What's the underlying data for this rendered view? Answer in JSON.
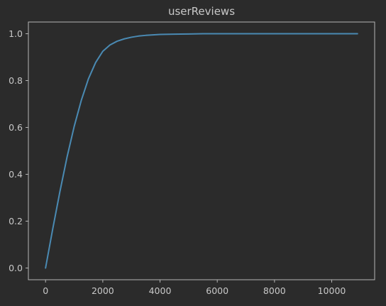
{
  "chart_data": {
    "type": "line",
    "title": "userReviews",
    "xlabel": "",
    "ylabel": "",
    "xlim": [
      -600,
      11500
    ],
    "ylim": [
      -0.05,
      1.05
    ],
    "x_ticks": [
      0,
      2000,
      4000,
      6000,
      8000,
      10000
    ],
    "y_ticks": [
      0.0,
      0.2,
      0.4,
      0.6,
      0.8,
      1.0
    ],
    "x_tick_labels": [
      "0",
      "2000",
      "4000",
      "6000",
      "8000",
      "10000"
    ],
    "y_tick_labels": [
      "0.0",
      "0.2",
      "0.4",
      "0.6",
      "0.8",
      "1.0"
    ],
    "grid": false,
    "series": [
      {
        "color": "#4a8ab3",
        "x": [
          0,
          250,
          500,
          750,
          1000,
          1250,
          1500,
          1750,
          2000,
          2250,
          2500,
          2750,
          3000,
          3250,
          3500,
          3750,
          4000,
          4500,
          5000,
          5500,
          6000,
          7000,
          8000,
          9000,
          10000,
          10900
        ],
        "y": [
          0.0,
          0.166,
          0.325,
          0.473,
          0.604,
          0.716,
          0.808,
          0.877,
          0.925,
          0.952,
          0.968,
          0.978,
          0.985,
          0.99,
          0.993,
          0.995,
          0.997,
          0.998,
          0.999,
          1.0,
          1.0,
          1.0,
          1.0,
          1.0,
          1.0,
          1.0
        ]
      }
    ]
  },
  "colors": {
    "background": "#2b2b2b",
    "axes_frame": "#b4b4b4",
    "text": "#c8c8c8",
    "line": "#4a8ab3"
  }
}
